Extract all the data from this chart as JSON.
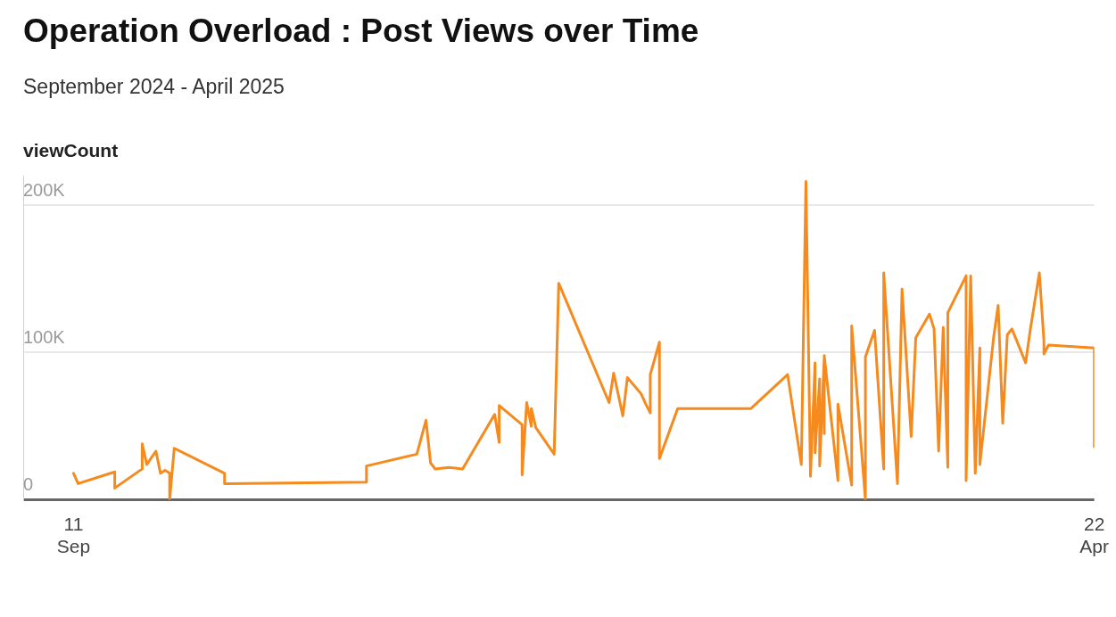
{
  "chart_data": {
    "type": "line",
    "title": "Operation Overload : Post Views over Time",
    "subtitle": "September 2024 - April 2025",
    "ylabel": "viewCount",
    "x": [
      "2024-09-11",
      "2024-09-12",
      "2024-09-20",
      "2024-09-20",
      "2024-09-26",
      "2024-09-26",
      "2024-09-27",
      "2024-09-29",
      "2024-09-30",
      "2024-10-01",
      "2024-10-02",
      "2024-10-02",
      "2024-10-03",
      "2024-10-14",
      "2024-10-14",
      "2024-11-14",
      "2024-11-14",
      "2024-11-25",
      "2024-11-27",
      "2024-11-28",
      "2024-11-29",
      "2024-12-02",
      "2024-12-05",
      "2024-12-12",
      "2024-12-13",
      "2024-12-13",
      "2024-12-18",
      "2024-12-18",
      "2024-12-19",
      "2024-12-20",
      "2024-12-20",
      "2024-12-21",
      "2024-12-25",
      "2024-12-26",
      "2025-01-06",
      "2025-01-07",
      "2025-01-09",
      "2025-01-10",
      "2025-01-13",
      "2025-01-14",
      "2025-01-15",
      "2025-01-15",
      "2025-01-17",
      "2025-01-17",
      "2025-01-21",
      "2025-02-06",
      "2025-02-14",
      "2025-02-17",
      "2025-02-18",
      "2025-02-19",
      "2025-02-20",
      "2025-02-20",
      "2025-02-21",
      "2025-02-21",
      "2025-02-22",
      "2025-02-22",
      "2025-02-22",
      "2025-02-25",
      "2025-02-25",
      "2025-02-28",
      "2025-02-28",
      "2025-03-03",
      "2025-03-03",
      "2025-03-05",
      "2025-03-07",
      "2025-03-07",
      "2025-03-10",
      "2025-03-11",
      "2025-03-13",
      "2025-03-14",
      "2025-03-17",
      "2025-03-18",
      "2025-03-19",
      "2025-03-20",
      "2025-03-21",
      "2025-03-21",
      "2025-03-25",
      "2025-03-25",
      "2025-03-26",
      "2025-03-27",
      "2025-03-28",
      "2025-03-28",
      "2025-03-31",
      "2025-04-01",
      "2025-04-02",
      "2025-04-03",
      "2025-04-04",
      "2025-04-07",
      "2025-04-08",
      "2025-04-10",
      "2025-04-11",
      "2025-04-11",
      "2025-04-12",
      "2025-04-22",
      "2025-04-22"
    ],
    "series": [
      {
        "color": "#f58a1f",
        "values": [
          18000,
          11000,
          19000,
          8000,
          21000,
          38000,
          24000,
          33000,
          18000,
          20000,
          18000,
          0,
          35000,
          18000,
          11000,
          12000,
          23000,
          31000,
          54000,
          25000,
          21000,
          22000,
          21000,
          58000,
          39000,
          64000,
          51000,
          17000,
          66000,
          50000,
          62000,
          49000,
          31000,
          147000,
          66000,
          86000,
          57000,
          83000,
          72000,
          65000,
          59000,
          85000,
          107000,
          28000,
          62000,
          62000,
          85000,
          24000,
          216000,
          16000,
          93000,
          32000,
          82000,
          23000,
          96000,
          45000,
          98000,
          13000,
          65000,
          10000,
          118000,
          0,
          97000,
          115000,
          21000,
          154000,
          11000,
          143000,
          43000,
          110000,
          126000,
          116000,
          33000,
          117000,
          22000,
          127000,
          152000,
          13000,
          152000,
          18000,
          103000,
          24000,
          110000,
          132000,
          52000,
          112000,
          116000,
          93000,
          115000,
          154000,
          108000,
          99000,
          105000,
          103000,
          36000
        ]
      }
    ],
    "xlim": [
      "2024-08-31",
      "2025-04-22"
    ],
    "xticks": [
      {
        "value": "2024-09-11",
        "label": "11 Sep"
      },
      {
        "value": "2025-04-22",
        "label": "22 Apr"
      }
    ],
    "ylim": [
      0,
      220000
    ],
    "yticks": [
      {
        "value": 0,
        "label": "0"
      },
      {
        "value": 100000,
        "label": "100K"
      },
      {
        "value": 200000,
        "label": "200K"
      }
    ],
    "grid": "y",
    "legend": false,
    "marker": "none",
    "line_style": "solid"
  }
}
